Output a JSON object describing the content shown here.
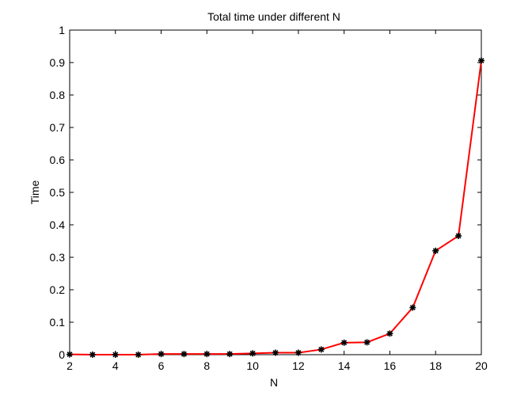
{
  "chart_data": {
    "type": "line",
    "title": "Total time under different N",
    "xlabel": "N",
    "ylabel": "Time",
    "xlim": [
      2,
      20
    ],
    "ylim": [
      0,
      1
    ],
    "xticks": [
      2,
      4,
      6,
      8,
      10,
      12,
      14,
      16,
      18,
      20
    ],
    "yticks": [
      0,
      0.1,
      0.2,
      0.3,
      0.4,
      0.5,
      0.6,
      0.7,
      0.8,
      0.9,
      1
    ],
    "ytick_labels": [
      "0",
      "0.1",
      "0.2",
      "0.3",
      "0.4",
      "0.5",
      "0.6",
      "0.7",
      "0.8",
      "0.9",
      "1"
    ],
    "grid": false,
    "series": [
      {
        "line_color": "#ff0000",
        "marker_color": "#000000",
        "marker": "asterisk",
        "x": [
          2,
          3,
          4,
          5,
          6,
          7,
          8,
          9,
          10,
          11,
          12,
          13,
          14,
          15,
          16,
          17,
          18,
          19,
          20
        ],
        "y": [
          0.001,
          0.0,
          0.0,
          0.0,
          0.002,
          0.002,
          0.002,
          0.002,
          0.004,
          0.006,
          0.006,
          0.016,
          0.037,
          0.038,
          0.065,
          0.145,
          0.32,
          0.366,
          0.906
        ]
      }
    ]
  }
}
